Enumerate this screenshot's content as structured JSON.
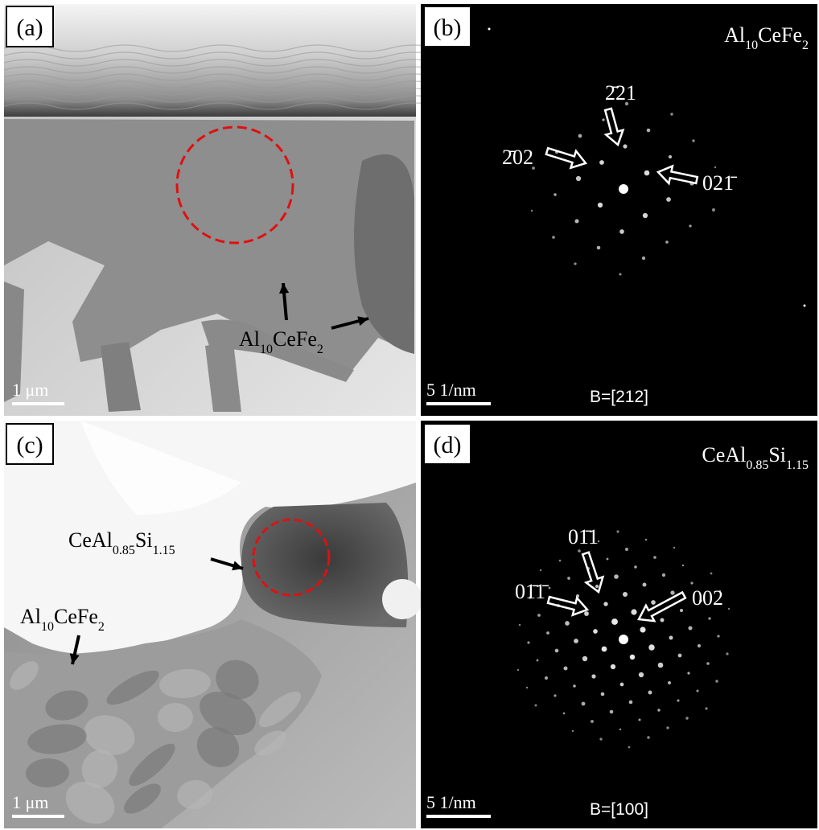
{
  "panels": [
    {
      "label": "(a)",
      "scale_bar": "1 μm",
      "annotation": [
        "Al",
        "10",
        "CeFe",
        "2"
      ]
    },
    {
      "label": "(b)",
      "phase": [
        "Al",
        "10",
        "CeFe",
        "2"
      ],
      "indices": [
        "2̄21",
        "2̄02",
        "021̄"
      ],
      "scale_bar": "5 1/nm",
      "zone_axis": "B=[212]"
    },
    {
      "label": "(c)",
      "annotations": [
        [
          "CeAl",
          "0.85",
          "Si",
          "1.15"
        ],
        [
          "Al",
          "10",
          "CeFe",
          "2"
        ]
      ],
      "scale_bar": "1 μm"
    },
    {
      "label": "(d)",
      "phase": [
        "CeAl",
        "0.85",
        "Si",
        "1.15"
      ],
      "indices": [
        "01̄1",
        "01̄1̄",
        "002"
      ],
      "scale_bar": "5 1/nm",
      "zone_axis": "B=[100]"
    }
  ]
}
